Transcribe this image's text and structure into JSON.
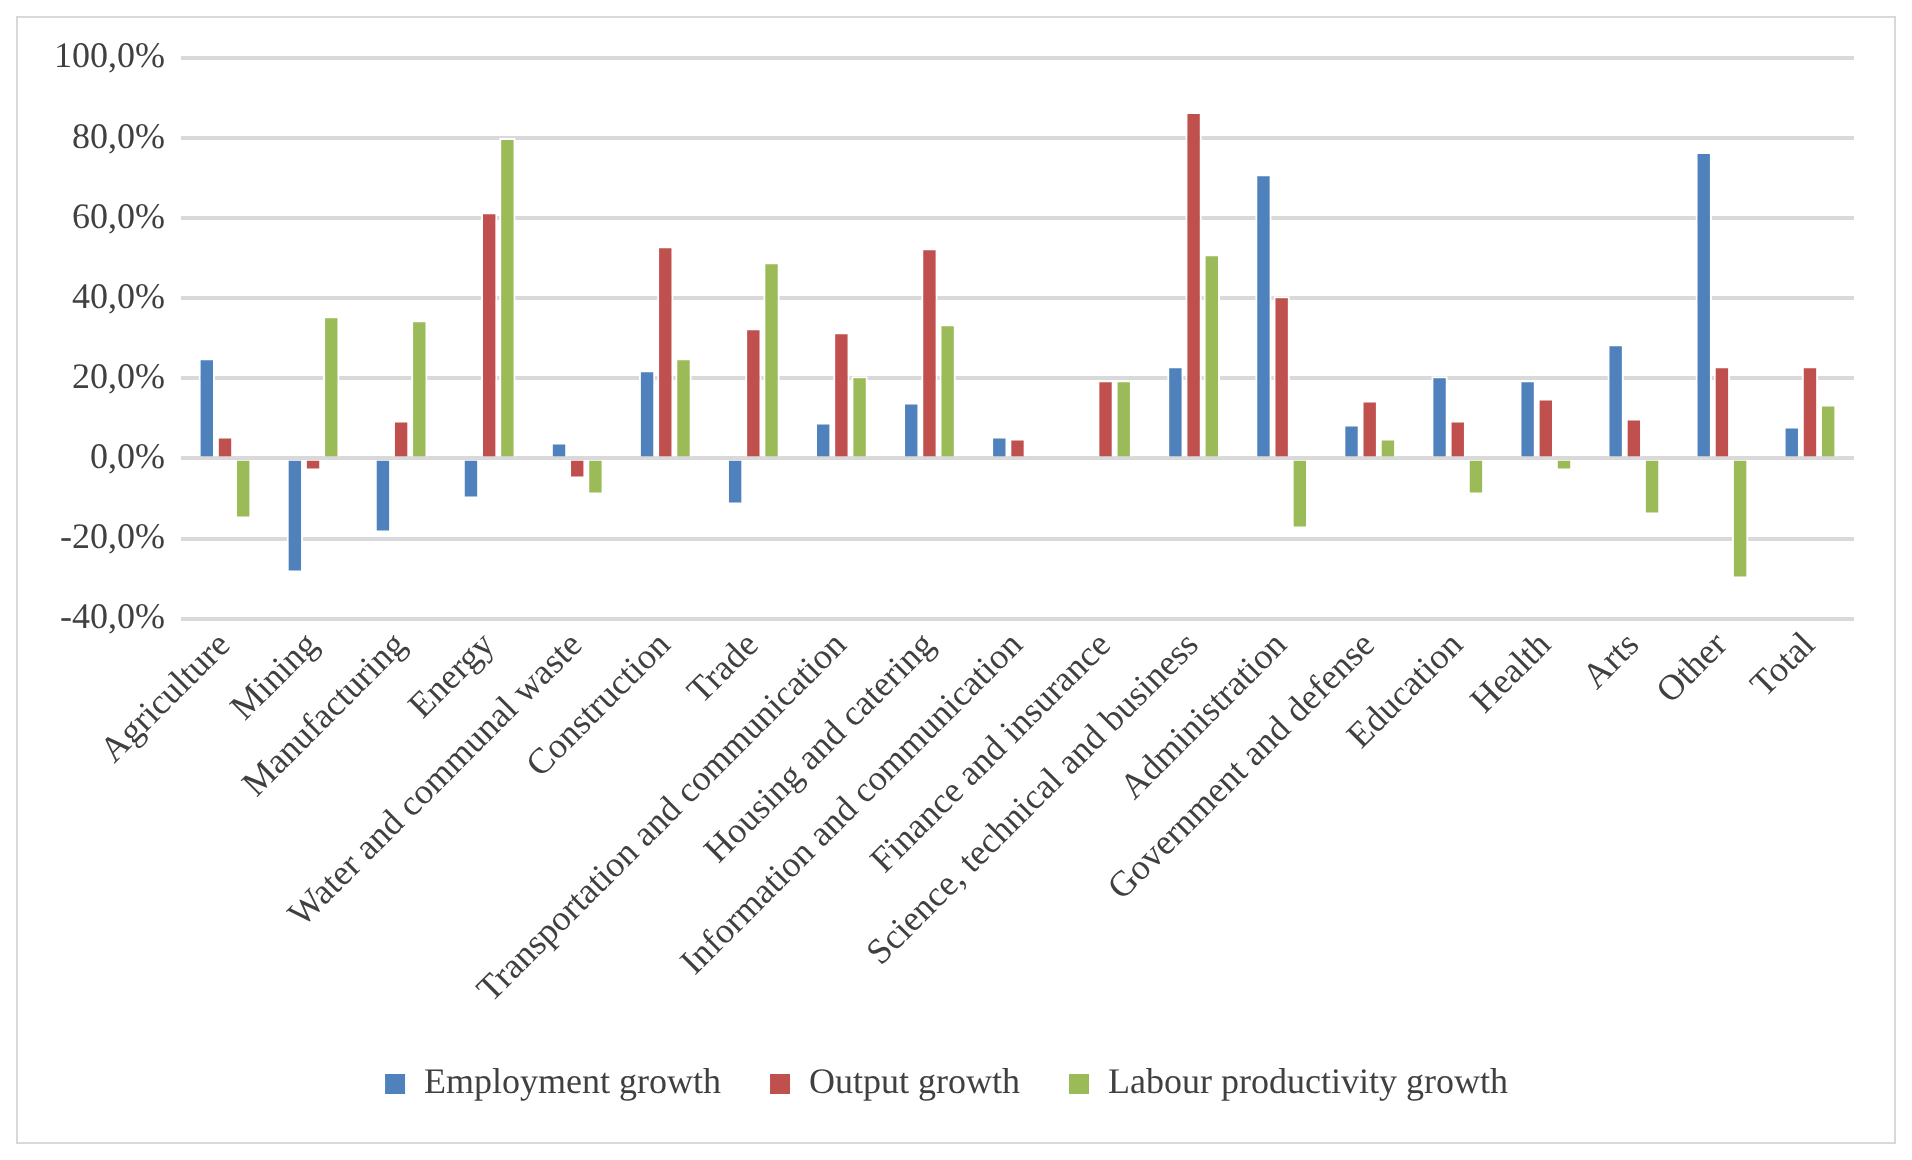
{
  "chart_data": {
    "type": "bar",
    "categories": [
      "Agriculture",
      "Mining",
      "Manufacturing",
      "Energy",
      "Water and communal waste",
      "Construction",
      "Trade",
      "Transportation and communication",
      "Housing and catering",
      "Information and communication",
      "Finance and insurance",
      "Science, technical and business",
      "Administration",
      "Government and defense",
      "Education",
      "Health",
      "Arts",
      "Other",
      "Total"
    ],
    "series": [
      {
        "name": "Employment growth",
        "color": "#4f81bd",
        "values": [
          25,
          -28.5,
          -18.5,
          -10,
          4,
          22,
          -11.5,
          9,
          14,
          5.5,
          null,
          23,
          71,
          8.5,
          20.5,
          19.5,
          28.5,
          76.5,
          8
        ]
      },
      {
        "name": "Output growth",
        "color": "#c0504d",
        "values": [
          5.5,
          -3,
          9.5,
          61.5,
          -5,
          53,
          32.5,
          31.5,
          52.5,
          5,
          19.5,
          86.5,
          40.5,
          14.5,
          9.5,
          15,
          10,
          23,
          23
        ]
      },
      {
        "name": "Labour productivity growth",
        "color": "#9bbb59",
        "values": [
          -15,
          35.5,
          34.5,
          80,
          -9,
          25,
          49,
          20.5,
          33.5,
          null,
          19.5,
          51,
          -17.5,
          5,
          -9,
          -3,
          -14,
          -30,
          13.5
        ]
      }
    ],
    "ylim": [
      -40,
      100
    ],
    "yticks": [
      {
        "value": -40,
        "label": "-40,0%"
      },
      {
        "value": -20,
        "label": "-20,0%"
      },
      {
        "value": 0,
        "label": "0,0%"
      },
      {
        "value": 20,
        "label": "20,0%"
      },
      {
        "value": 40,
        "label": "40,0%"
      },
      {
        "value": 60,
        "label": "60,0%"
      },
      {
        "value": 80,
        "label": "80,0%"
      },
      {
        "value": 100,
        "label": "100,0%"
      }
    ],
    "grid": "y",
    "legend": "bottom"
  }
}
